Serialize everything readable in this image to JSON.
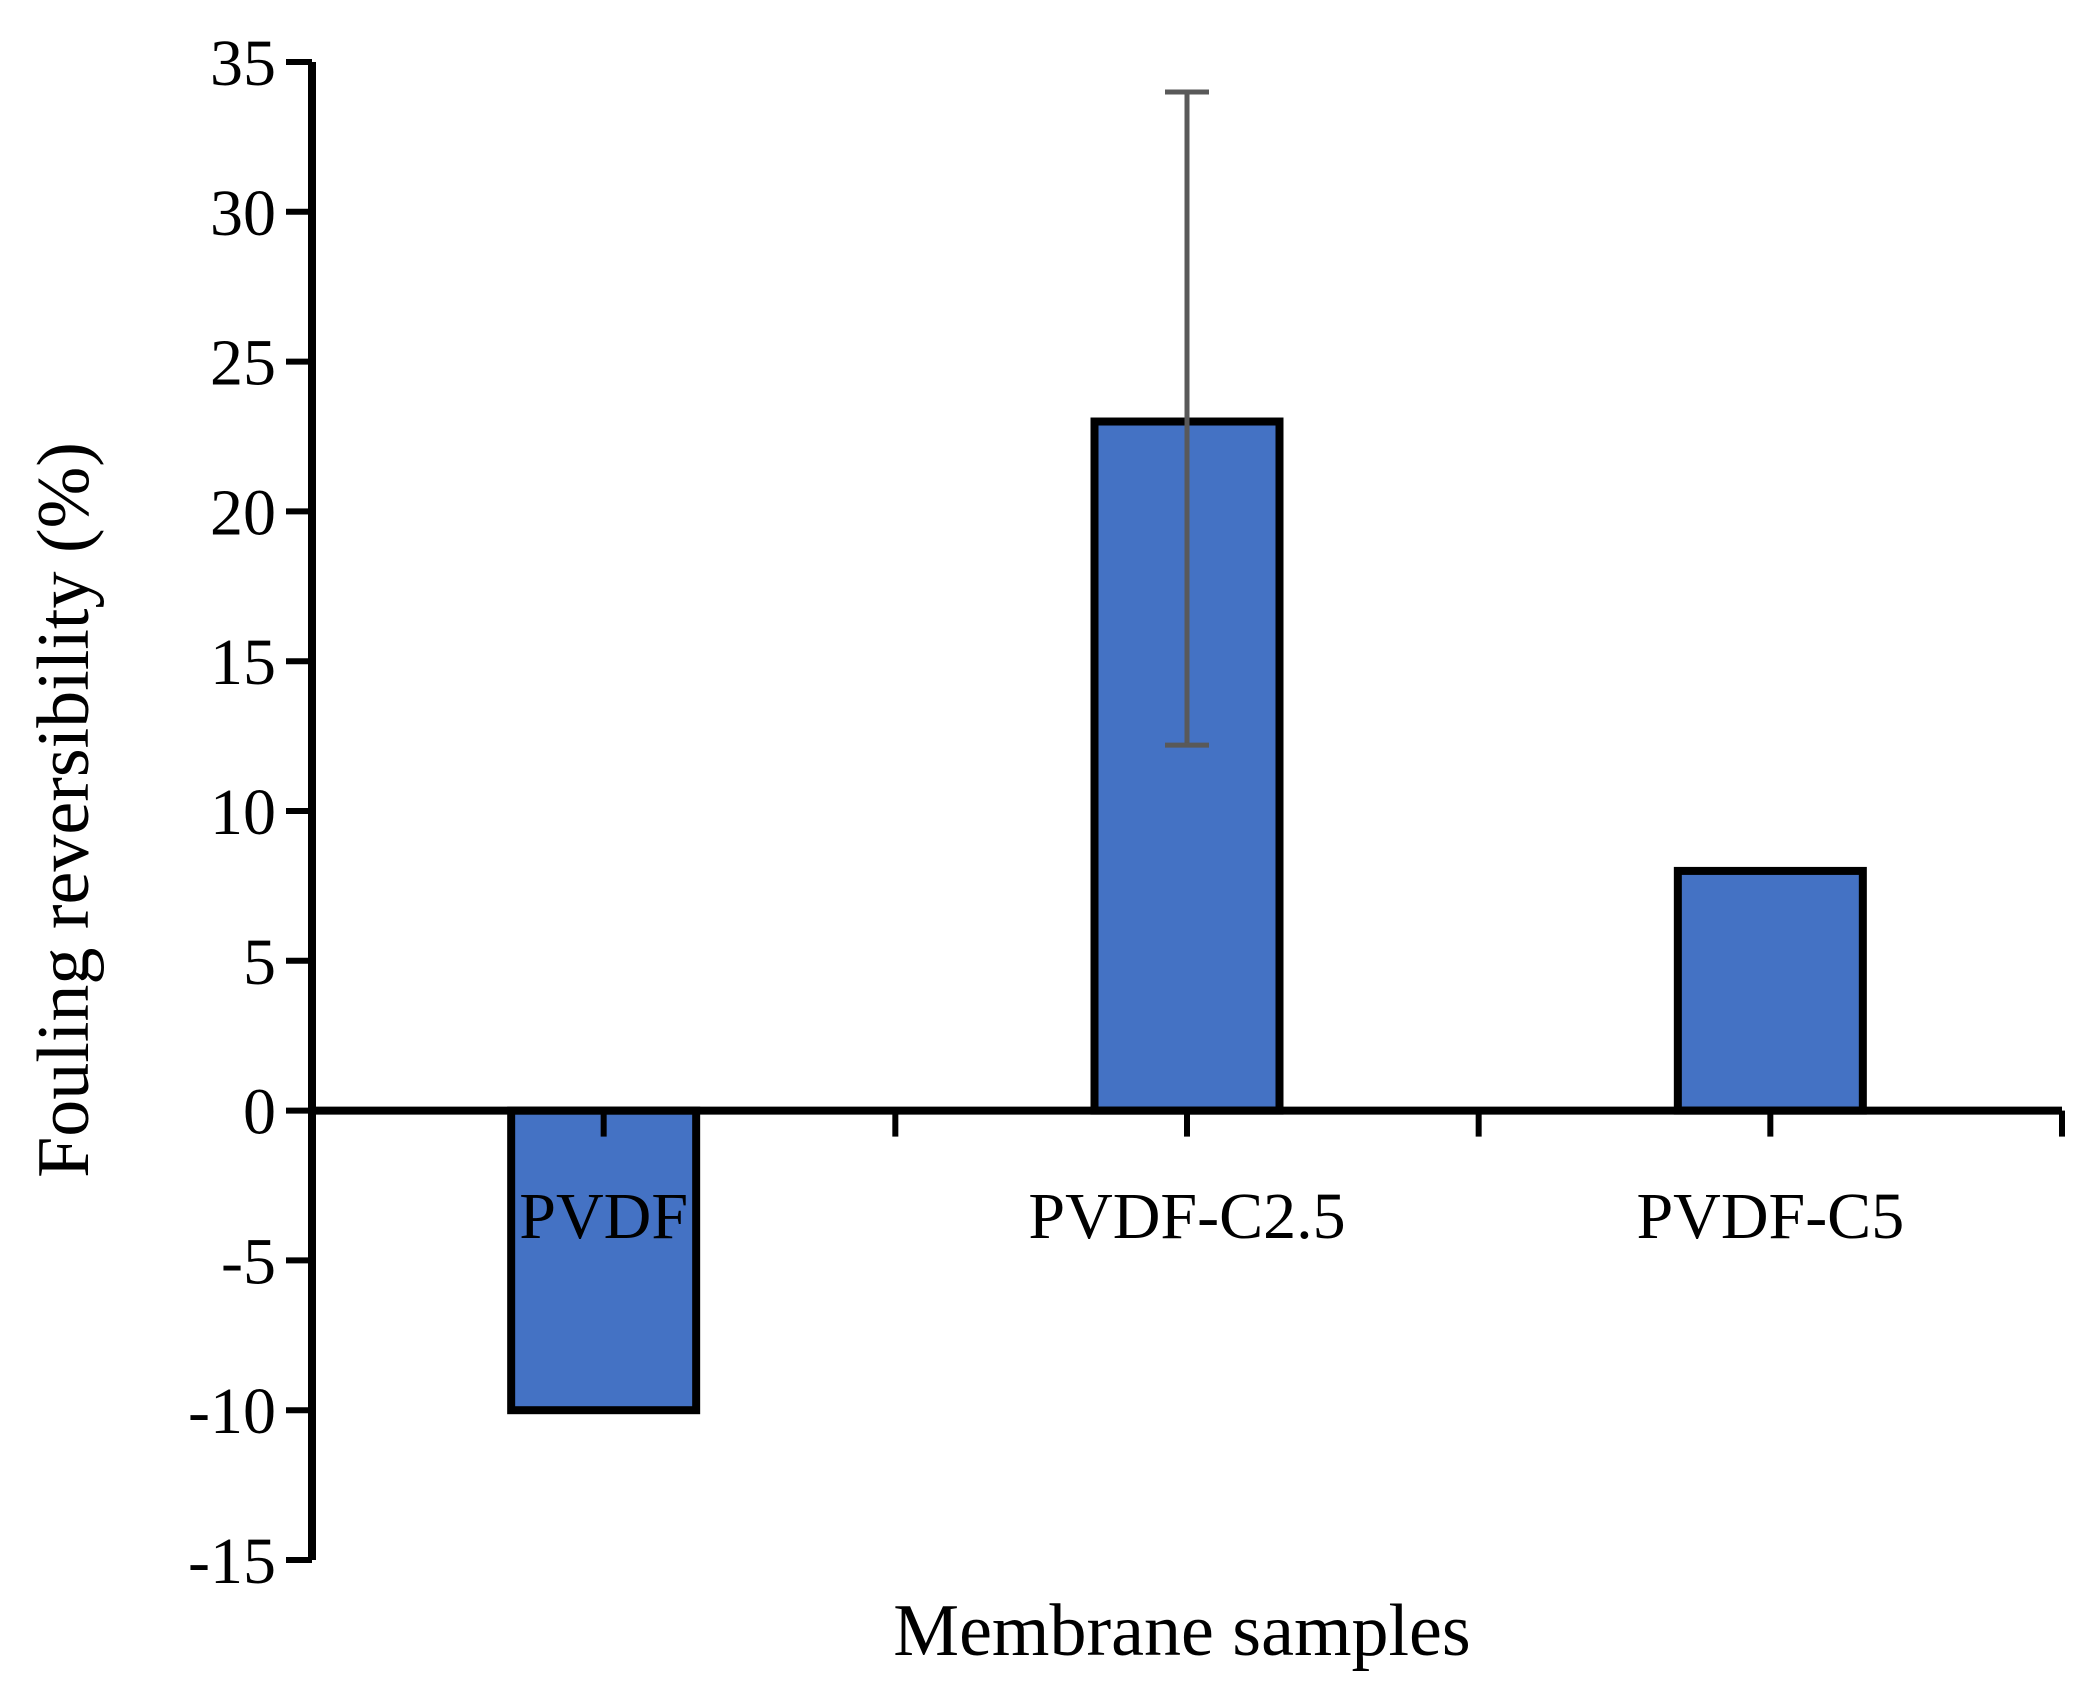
{
  "chart_data": {
    "type": "bar",
    "title": "",
    "xlabel": "Membrane samples",
    "ylabel": "Fouling reversibility (%)",
    "categories": [
      "PVDF",
      "PVDF-C2.5",
      "PVDF-C5"
    ],
    "series": [
      {
        "name": "Fouling reversibility",
        "values": [
          -10,
          23,
          8
        ],
        "error_low": [
          null,
          12.2,
          null
        ],
        "error_high": [
          null,
          34,
          null
        ]
      }
    ],
    "ylim": [
      -15,
      35
    ],
    "yticks": [
      -15,
      -10,
      -5,
      0,
      5,
      10,
      15,
      20,
      25,
      30,
      35
    ],
    "grid": false,
    "legend": "none",
    "colors": {
      "bar_fill": "#4472C4",
      "bar_stroke": "#000000",
      "error_bar": "#595959",
      "axis": "#000000"
    }
  }
}
